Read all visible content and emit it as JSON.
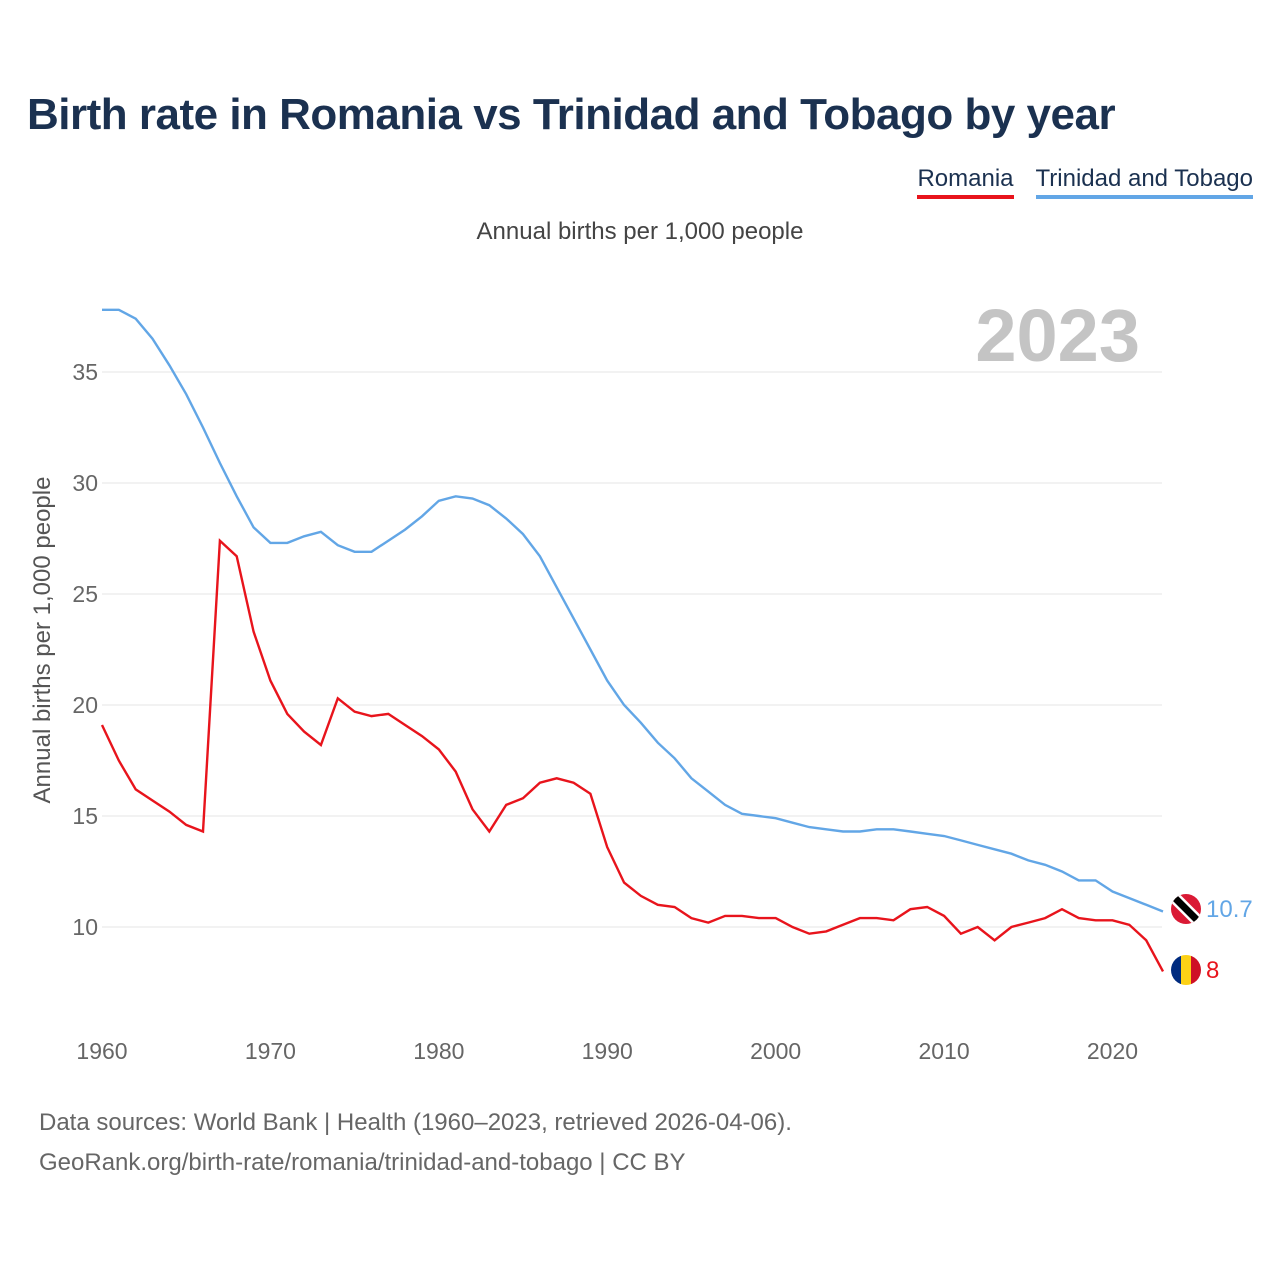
{
  "title": "Birth rate in Romania vs Trinidad and Tobago by year",
  "legend": [
    {
      "name": "Romania",
      "color": "#e8141c"
    },
    {
      "name": "Trinidad and Tobago",
      "color": "#62a6e6"
    }
  ],
  "chart_data": {
    "type": "line",
    "title": "Birth rate in Romania vs Trinidad and Tobago by year",
    "subtitle": "Annual births per 1,000 people",
    "ylabel": "Annual births per 1,000 people",
    "xlabel": "",
    "year_label": "2023",
    "xlim": [
      1960,
      2023
    ],
    "ylim": [
      6,
      39
    ],
    "yticks": [
      10,
      15,
      20,
      25,
      30,
      35
    ],
    "xticks": [
      1960,
      1970,
      1980,
      1990,
      2000,
      2010,
      2020
    ],
    "grid": true,
    "x": [
      1960,
      1961,
      1962,
      1963,
      1964,
      1965,
      1966,
      1967,
      1968,
      1969,
      1970,
      1971,
      1972,
      1973,
      1974,
      1975,
      1976,
      1977,
      1978,
      1979,
      1980,
      1981,
      1982,
      1983,
      1984,
      1985,
      1986,
      1987,
      1988,
      1989,
      1990,
      1991,
      1992,
      1993,
      1994,
      1995,
      1996,
      1997,
      1998,
      1999,
      2000,
      2001,
      2002,
      2003,
      2004,
      2005,
      2006,
      2007,
      2008,
      2009,
      2010,
      2011,
      2012,
      2013,
      2014,
      2015,
      2016,
      2017,
      2018,
      2019,
      2020,
      2021,
      2022,
      2023
    ],
    "series": [
      {
        "name": "Romania",
        "color": "#e8141c",
        "end_label": "8",
        "values": [
          19.1,
          17.5,
          16.2,
          15.7,
          15.2,
          14.6,
          14.3,
          27.4,
          26.7,
          23.3,
          21.1,
          19.6,
          18.8,
          18.2,
          20.3,
          19.7,
          19.5,
          19.6,
          19.1,
          18.6,
          18.0,
          17.0,
          15.3,
          14.3,
          15.5,
          15.8,
          16.5,
          16.7,
          16.5,
          16.0,
          13.6,
          12.0,
          11.4,
          11.0,
          10.9,
          10.4,
          10.2,
          10.5,
          10.5,
          10.4,
          10.4,
          10.0,
          9.7,
          9.8,
          10.1,
          10.4,
          10.4,
          10.3,
          10.8,
          10.9,
          10.5,
          9.7,
          10.0,
          9.4,
          10.0,
          10.2,
          10.4,
          10.8,
          10.4,
          10.3,
          10.3,
          10.1,
          9.4,
          8.0
        ]
      },
      {
        "name": "Trinidad and Tobago",
        "color": "#62a6e6",
        "end_label": "10.7",
        "values": [
          37.8,
          37.8,
          37.4,
          36.5,
          35.3,
          34.0,
          32.5,
          30.9,
          29.4,
          28.0,
          27.3,
          27.3,
          27.6,
          27.8,
          27.2,
          26.9,
          26.9,
          27.4,
          27.9,
          28.5,
          29.2,
          29.4,
          29.3,
          29.0,
          28.4,
          27.7,
          26.7,
          25.3,
          23.9,
          22.5,
          21.1,
          20.0,
          19.2,
          18.3,
          17.6,
          16.7,
          16.1,
          15.5,
          15.1,
          15.0,
          14.9,
          14.7,
          14.5,
          14.4,
          14.3,
          14.3,
          14.4,
          14.4,
          14.3,
          14.2,
          14.1,
          13.9,
          13.7,
          13.5,
          13.3,
          13.0,
          12.8,
          12.5,
          12.1,
          12.1,
          11.6,
          11.3,
          11.0,
          10.7
        ]
      }
    ]
  },
  "footer": {
    "line1": "Data sources: World Bank | Health (1960–2023, retrieved 2026-04-06).",
    "line2": "GeoRank.org/birth-rate/romania/trinidad-and-tobago | CC BY"
  }
}
